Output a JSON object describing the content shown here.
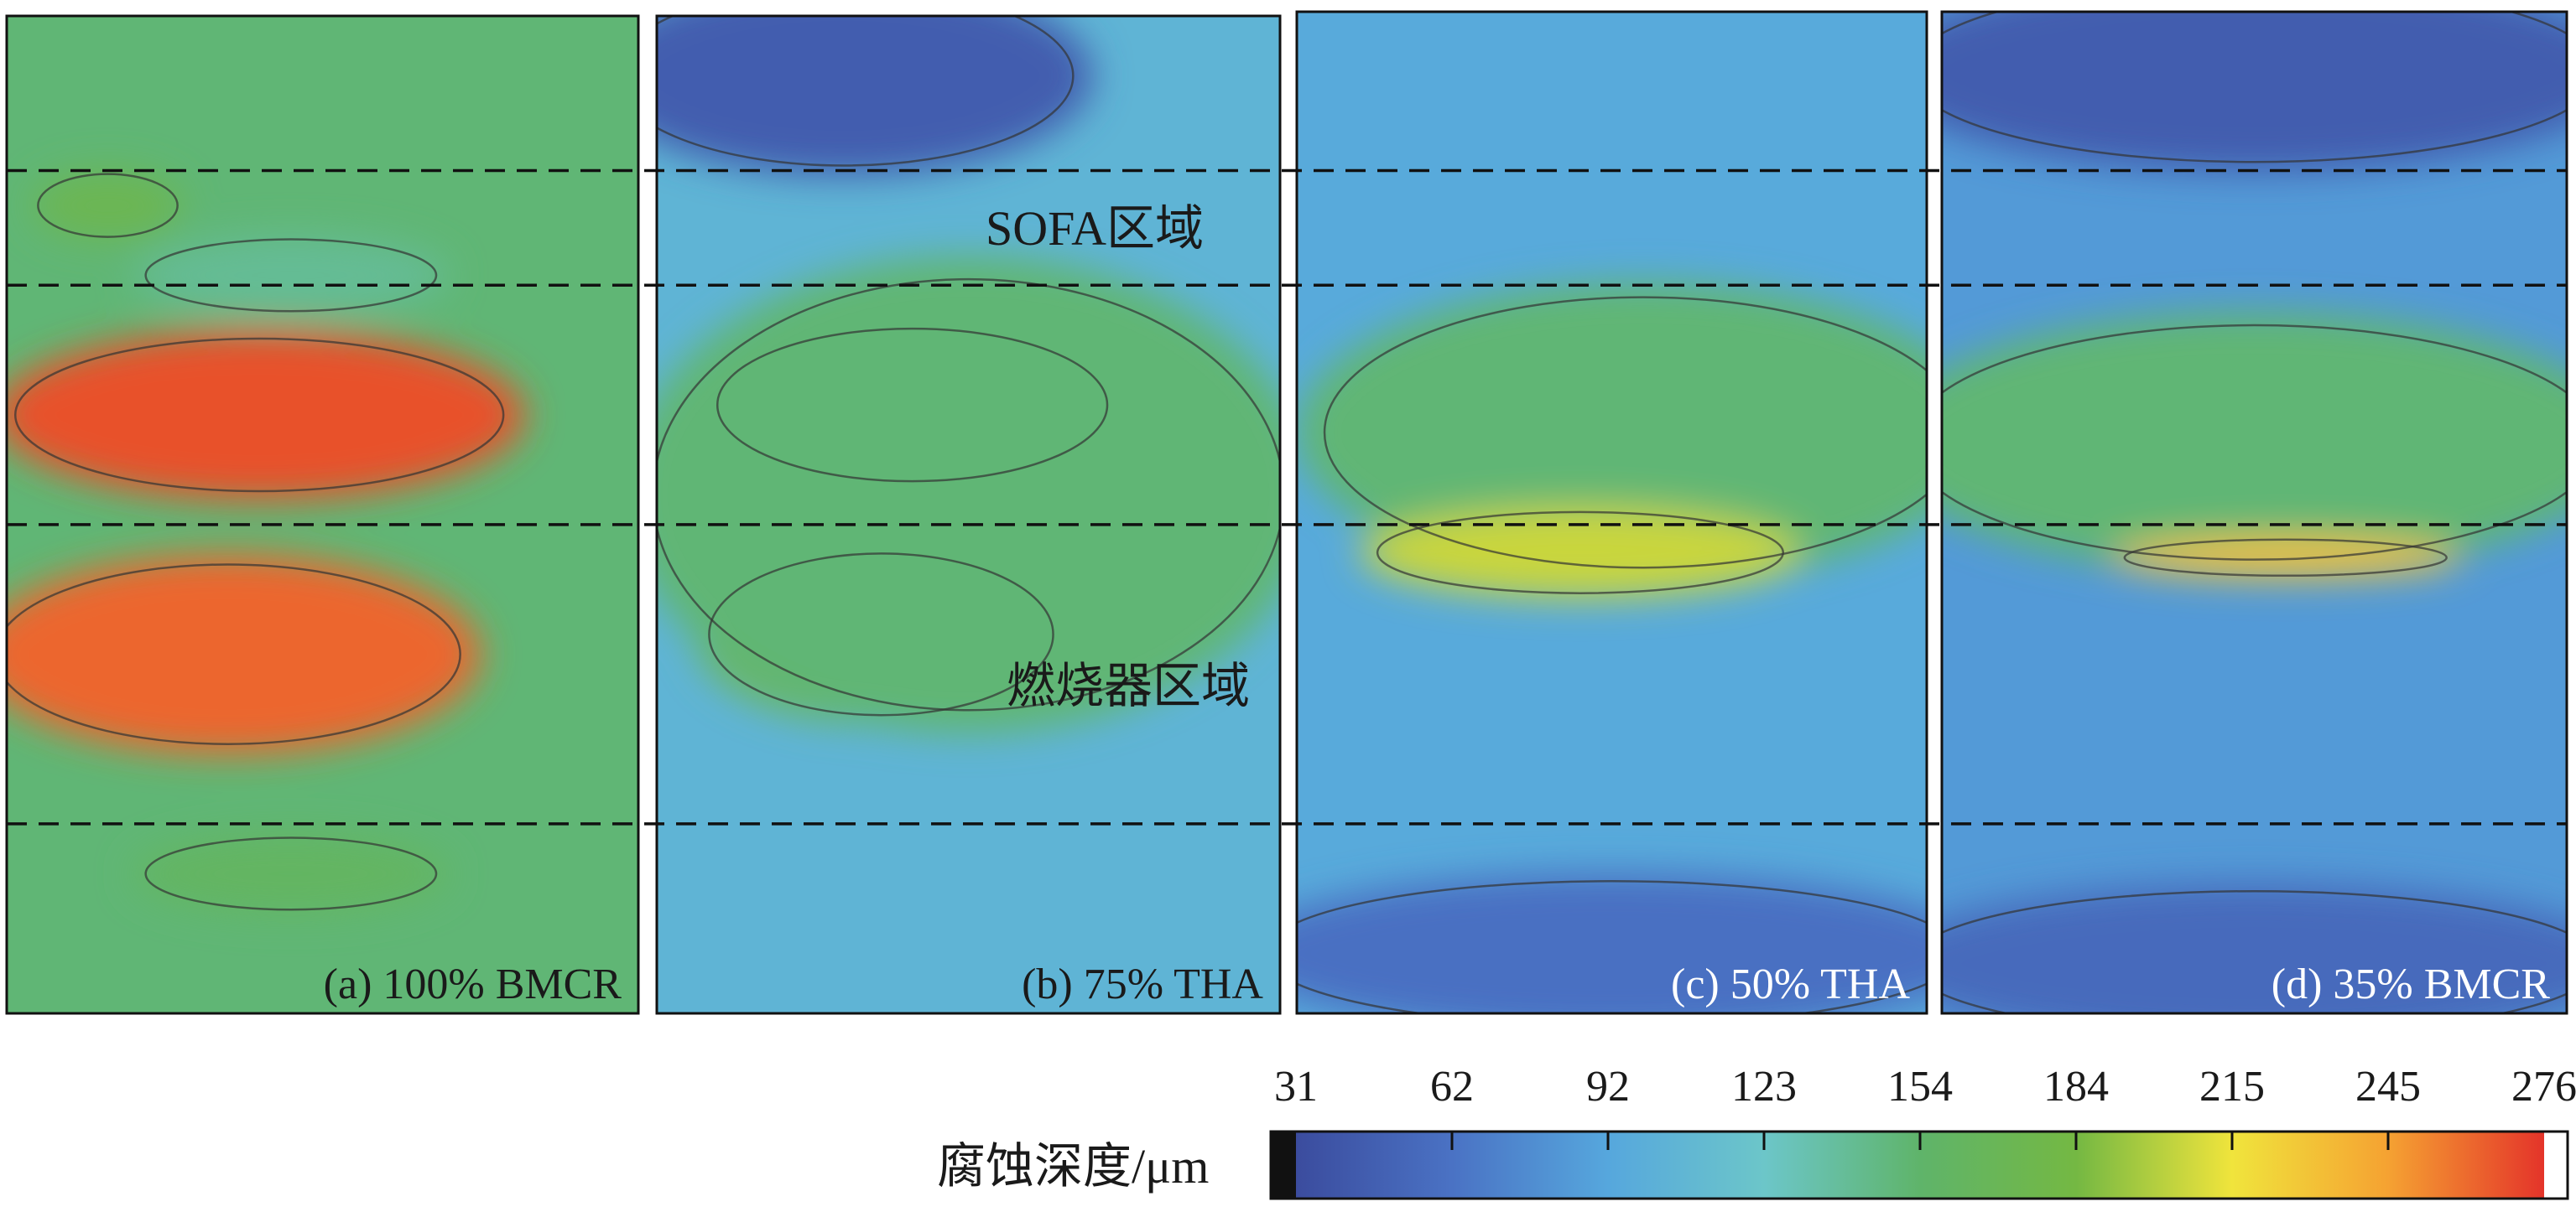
{
  "chart_data": {
    "type": "heatmap",
    "colorbar": {
      "title": "腐蚀深度/μm",
      "ticks": [
        "31",
        "62",
        "92",
        "123",
        "154",
        "184",
        "215",
        "245",
        "276"
      ],
      "min": 31,
      "max": 276
    },
    "zones": {
      "sofa": "SOFA区域",
      "burner": "燃烧器区域"
    },
    "panels": [
      {
        "label": "(a) 100% BMCR",
        "background": 150,
        "hotspots": [
          {
            "value": 172,
            "cx": 0.16,
            "cy": 0.19,
            "rx": 0.12,
            "ry": 0.035
          },
          {
            "value": 140,
            "cx": 0.45,
            "cy": 0.26,
            "rx": 0.25,
            "ry": 0.04
          },
          {
            "value": 268,
            "cx": 0.4,
            "cy": 0.4,
            "rx": 0.42,
            "ry": 0.085
          },
          {
            "value": 262,
            "cx": 0.35,
            "cy": 0.64,
            "rx": 0.4,
            "ry": 0.1
          },
          {
            "value": 160,
            "cx": 0.45,
            "cy": 0.86,
            "rx": 0.25,
            "ry": 0.04
          }
        ]
      },
      {
        "label": "(b) 75% THA",
        "background": 105,
        "hotspots": [
          {
            "value": 45,
            "cx": 0.3,
            "cy": 0.06,
            "rx": 0.4,
            "ry": 0.1
          },
          {
            "value": 180,
            "cx": 0.41,
            "cy": 0.39,
            "rx": 0.34,
            "ry": 0.085
          },
          {
            "value": 178,
            "cx": 0.36,
            "cy": 0.62,
            "rx": 0.3,
            "ry": 0.09
          },
          {
            "value": 150,
            "cx": 0.5,
            "cy": 0.48,
            "rx": 0.55,
            "ry": 0.24
          }
        ]
      },
      {
        "label": "(c) 50% THA",
        "background": 95,
        "hotspots": [
          {
            "value": 150,
            "cx": 0.55,
            "cy": 0.42,
            "rx": 0.55,
            "ry": 0.15
          },
          {
            "value": 205,
            "cx": 0.45,
            "cy": 0.54,
            "rx": 0.35,
            "ry": 0.045
          },
          {
            "value": 60,
            "cx": 0.5,
            "cy": 0.94,
            "rx": 0.6,
            "ry": 0.08
          }
        ]
      },
      {
        "label": "(d) 35% BMCR",
        "background": 85,
        "hotspots": [
          {
            "value": 45,
            "cx": 0.5,
            "cy": 0.06,
            "rx": 0.6,
            "ry": 0.1
          },
          {
            "value": 150,
            "cx": 0.5,
            "cy": 0.43,
            "rx": 0.6,
            "ry": 0.13
          },
          {
            "value": 230,
            "cx": 0.55,
            "cy": 0.545,
            "rx": 0.28,
            "ry": 0.02
          },
          {
            "value": 55,
            "cx": 0.5,
            "cy": 0.95,
            "rx": 0.6,
            "ry": 0.08
          }
        ]
      }
    ],
    "dashed_lines_y": [
      0.155,
      0.27,
      0.51,
      0.81
    ],
    "colors": {
      "scale": [
        "#3b4c9e",
        "#4a72c4",
        "#56a7dd",
        "#6cc6c9",
        "#5fb46a",
        "#74b843",
        "#f0e43c",
        "#f5a232",
        "#e4342a"
      ]
    }
  }
}
